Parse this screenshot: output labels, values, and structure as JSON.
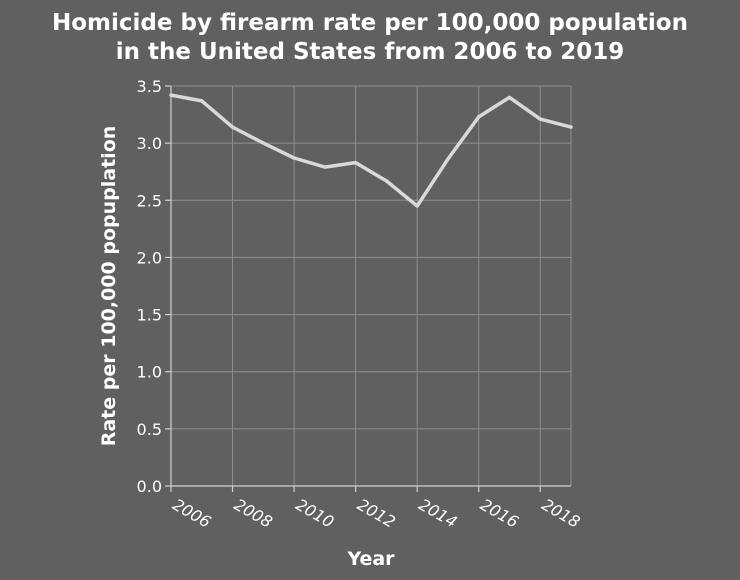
{
  "chart_data": {
    "type": "line",
    "title_lines": [
      "Homicide by firearm rate per 100,000 population",
      "in the United States from 2006 to 2019"
    ],
    "xlabel": "Year",
    "ylabel": "Rate per 100,000 popuplation",
    "xlim": [
      2006,
      2019
    ],
    "ylim": [
      0,
      3.5
    ],
    "x_ticks": [
      2006,
      2008,
      2010,
      2012,
      2014,
      2016,
      2018
    ],
    "y_ticks": [
      "0.0",
      "0.5",
      "1.0",
      "1.5",
      "2.0",
      "2.5",
      "3.0",
      "3.5"
    ],
    "grid": true,
    "line_color": "#d9d9d9",
    "background_color": "#606060",
    "series": [
      {
        "x": [
          2006,
          2007,
          2008,
          2009,
          2010,
          2011,
          2012,
          2013,
          2014,
          2015,
          2016,
          2017,
          2018,
          2019
        ],
        "y": [
          3.42,
          3.37,
          3.14,
          3.0,
          2.87,
          2.79,
          2.83,
          2.67,
          2.45,
          2.86,
          3.23,
          3.4,
          3.21,
          3.14
        ]
      }
    ]
  }
}
